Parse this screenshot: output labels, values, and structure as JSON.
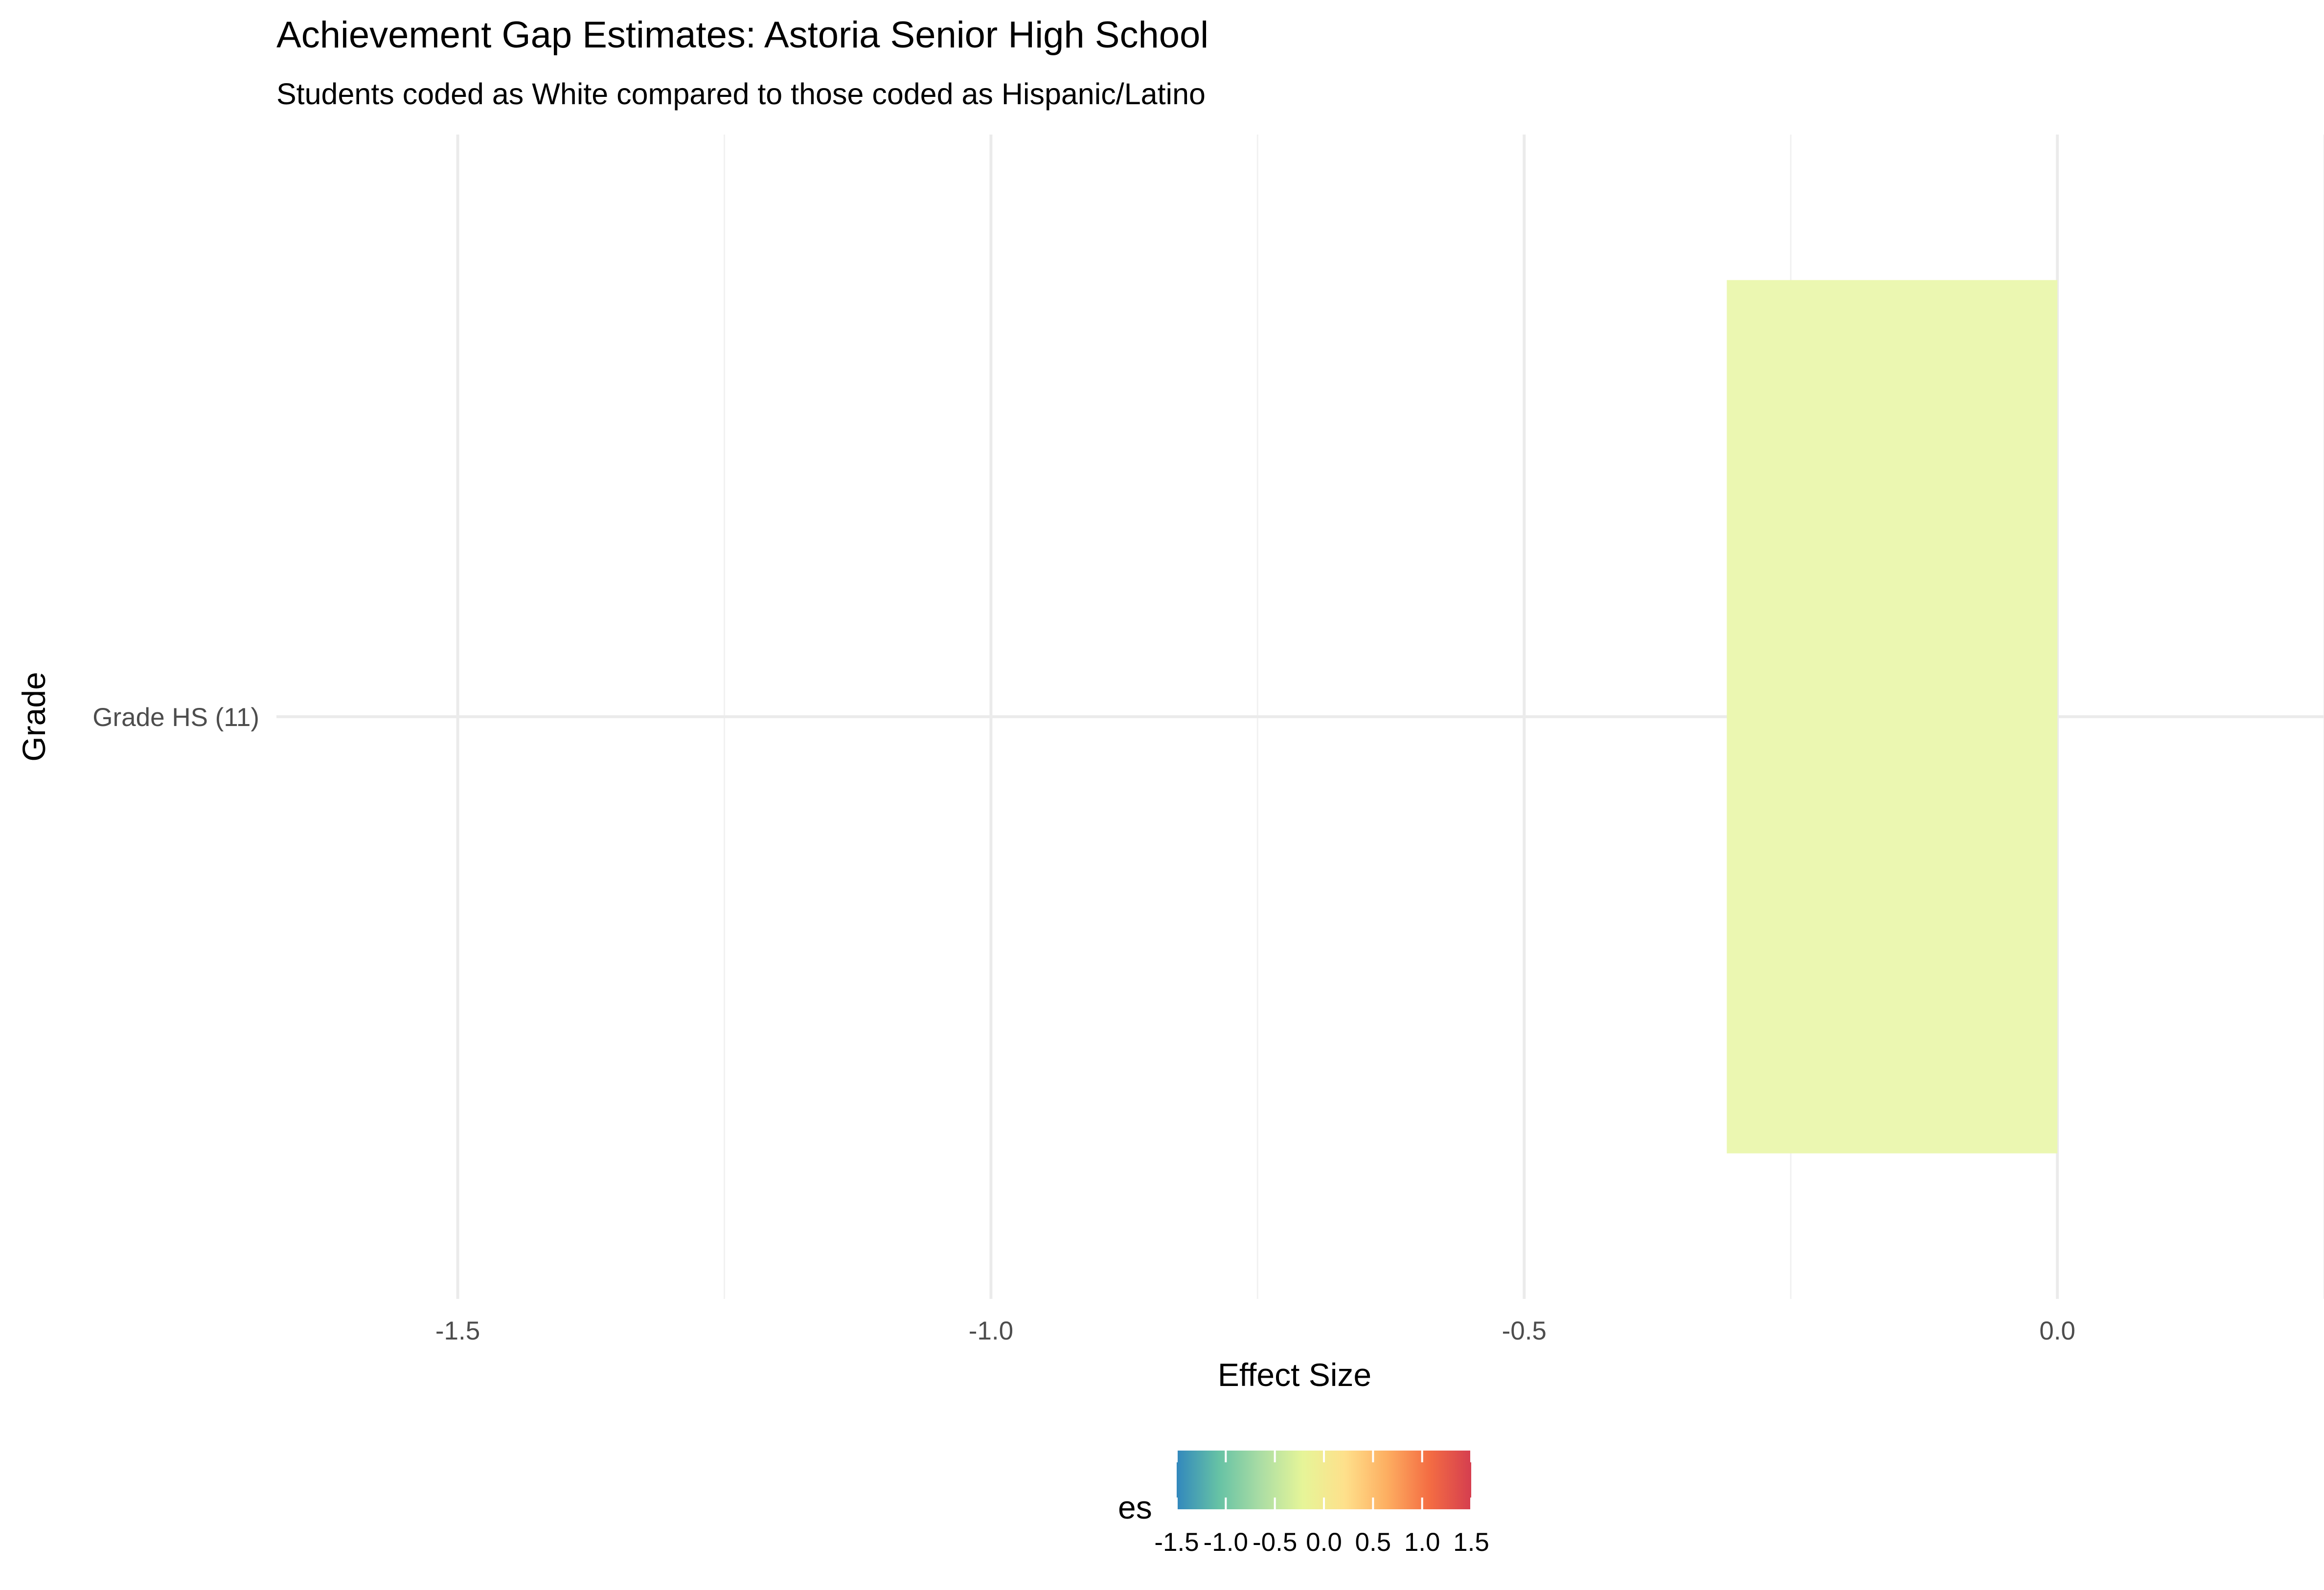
{
  "chart_data": {
    "type": "bar",
    "orientation": "horizontal",
    "title": "Achievement Gap Estimates: Astoria Senior High School",
    "subtitle": "Students coded as White compared to those coded as Hispanic/Latino",
    "xlabel": "Effect Size",
    "ylabel": "Grade",
    "categories": [
      "Grade HS (11)"
    ],
    "values": [
      -0.31
    ],
    "xlim": [
      -1.67,
      0.25
    ],
    "xticks": [
      -1.5,
      -1.0,
      -0.5,
      0.0
    ],
    "xtick_labels": [
      "-1.5",
      "-1.0",
      "-0.5",
      "0.0"
    ],
    "grid": true,
    "legend": {
      "position": "bottom",
      "title": "es",
      "type": "colorbar",
      "palette": "Spectral (reversed)",
      "limits": [
        -1.5,
        1.5
      ],
      "breaks": [
        -1.5,
        -1.0,
        -0.5,
        0.0,
        0.5,
        1.0,
        1.5
      ],
      "labels": [
        "-1.5",
        "-1.0",
        "-0.5",
        "0.0",
        "0.5",
        "1.0",
        "1.5"
      ],
      "colors": [
        "#3288bd",
        "#66c2a5",
        "#abdda4",
        "#e6f598",
        "#fee08b",
        "#fdae61",
        "#f46d43",
        "#d53e4f"
      ]
    },
    "bar_color": "#ebf7b1"
  }
}
